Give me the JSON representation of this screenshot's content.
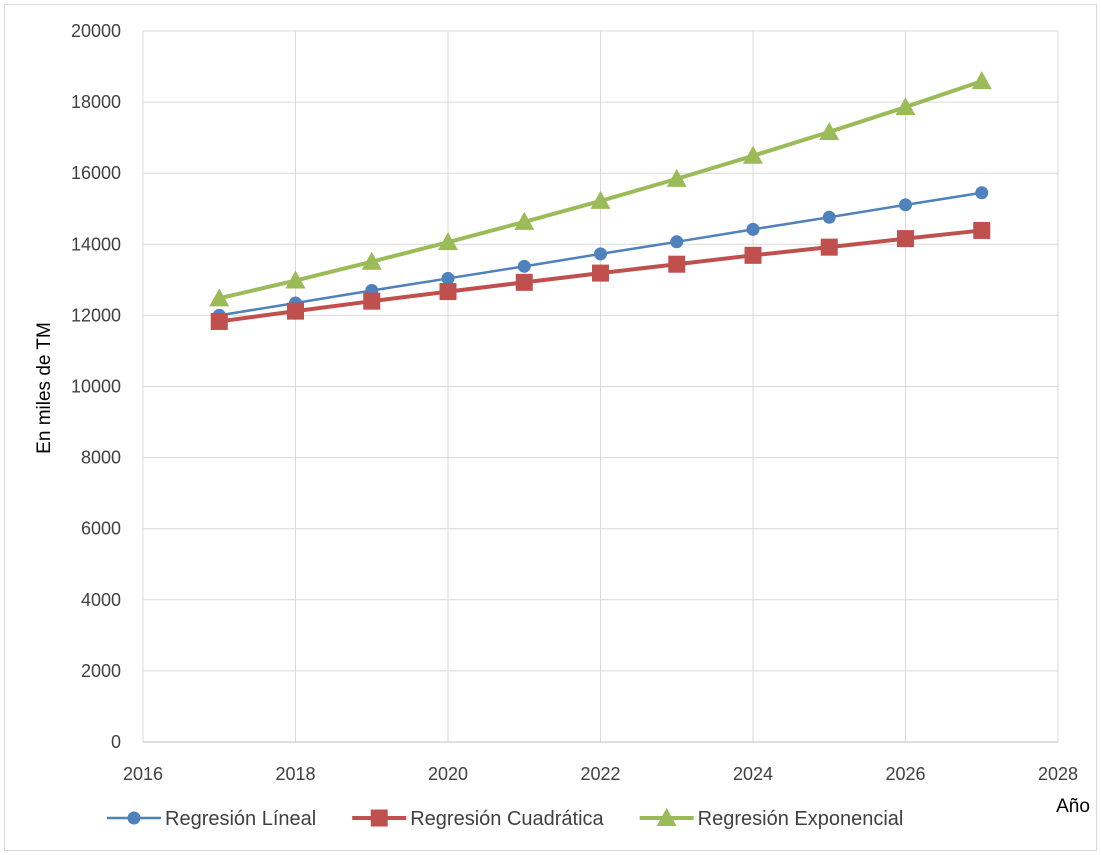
{
  "chart_data": {
    "type": "line",
    "title": "",
    "xlabel": "Año",
    "ylabel": "En miles de TM",
    "xlim": [
      2016,
      2028
    ],
    "ylim": [
      0,
      20000
    ],
    "x_ticks": [
      2016,
      2018,
      2020,
      2022,
      2024,
      2026,
      2028
    ],
    "y_ticks": [
      0,
      2000,
      4000,
      6000,
      8000,
      10000,
      12000,
      14000,
      16000,
      18000,
      20000
    ],
    "grid": true,
    "legend_position": "bottom",
    "x": [
      2017,
      2018,
      2019,
      2020,
      2021,
      2022,
      2023,
      2024,
      2025,
      2026,
      2027
    ],
    "series": [
      {
        "name": "Regresión Líneal",
        "color": "#4f81bd",
        "marker": "circle",
        "values": [
          12000,
          12350,
          12700,
          13040,
          13380,
          13730,
          14070,
          14420,
          14760,
          15110,
          15450
        ]
      },
      {
        "name": "Regresión Cuadrática",
        "color": "#c0504d",
        "marker": "square",
        "values": [
          11830,
          12120,
          12400,
          12670,
          12930,
          13190,
          13440,
          13690,
          13920,
          14160,
          14390
        ]
      },
      {
        "name": "Regresión Exponencial",
        "color": "#9bbb59",
        "marker": "triangle",
        "values": [
          12480,
          12980,
          13510,
          14060,
          14630,
          15220,
          15840,
          16490,
          17160,
          17860,
          18590
        ]
      }
    ]
  }
}
